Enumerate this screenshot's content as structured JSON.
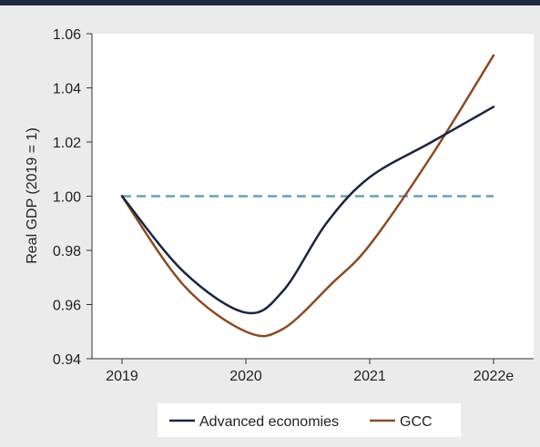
{
  "chart_data": {
    "type": "line",
    "title": "",
    "xlabel": "",
    "ylabel": "Real GDP (2019 = 1)",
    "categories": [
      "2019",
      "2020",
      "2021",
      "2022e"
    ],
    "ylim": [
      0.94,
      1.06
    ],
    "yticks": [
      "0.94",
      "0.96",
      "0.98",
      "1.00",
      "1.02",
      "1.04",
      "1.06"
    ],
    "grid": false,
    "legend_position": "bottom",
    "series": [
      {
        "name": "Advanced economies",
        "color": "#1c2540",
        "points": [
          [
            0.0,
            1.0
          ],
          [
            0.5,
            0.972
          ],
          [
            1.0,
            0.957
          ],
          [
            1.3,
            0.965
          ],
          [
            1.65,
            0.99
          ],
          [
            2.0,
            1.007
          ],
          [
            2.5,
            1.02
          ],
          [
            3.0,
            1.033
          ]
        ]
      },
      {
        "name": "GCC",
        "color": "#8c4a22",
        "points": [
          [
            0.0,
            1.0
          ],
          [
            0.5,
            0.967
          ],
          [
            1.0,
            0.95
          ],
          [
            1.3,
            0.951
          ],
          [
            1.7,
            0.968
          ],
          [
            2.0,
            0.982
          ],
          [
            2.5,
            1.015
          ],
          [
            3.0,
            1.052
          ]
        ]
      }
    ],
    "reference_line": {
      "value": 1.0,
      "color": "#6a9fb5",
      "style": "dashed"
    }
  }
}
